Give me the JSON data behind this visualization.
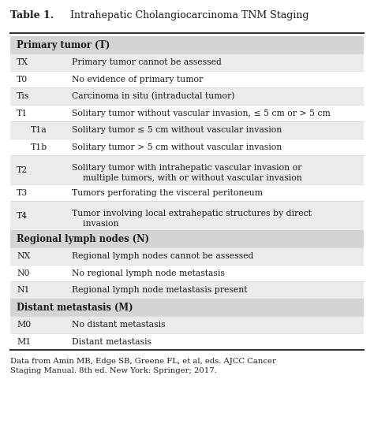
{
  "title_bold": "Table 1.",
  "title_normal": " Intrahepatic Cholangiocarcinoma TNM Staging",
  "footer": "Data from Amin MB, Edge SB, Greene FL, et al, eds. AJCC Cancer Staging Manual. 8th ed. New York: Springer; 2017.",
  "sections": [
    {
      "type": "header",
      "text": "Primary tumor (T)"
    },
    {
      "type": "row",
      "code": "TX",
      "desc": "Primary tumor cannot be assessed",
      "bg": "#ebebeb",
      "indent": 0,
      "nlines": 1
    },
    {
      "type": "row",
      "code": "T0",
      "desc": "No evidence of primary tumor",
      "bg": "#ffffff",
      "indent": 0,
      "nlines": 1
    },
    {
      "type": "row",
      "code": "Tis",
      "desc": "Carcinoma in situ (intraductal tumor)",
      "bg": "#ebebeb",
      "indent": 0,
      "nlines": 1
    },
    {
      "type": "row",
      "code": "T1",
      "desc": "Solitary tumor without vascular invasion, ≤ 5 cm or > 5 cm",
      "bg": "#ffffff",
      "indent": 0,
      "nlines": 1
    },
    {
      "type": "row",
      "code": "T1a",
      "desc": "Solitary tumor ≤ 5 cm without vascular invasion",
      "bg": "#ebebeb",
      "indent": 1,
      "nlines": 1
    },
    {
      "type": "row",
      "code": "T1b",
      "desc": "Solitary tumor > 5 cm without vascular invasion",
      "bg": "#ffffff",
      "indent": 1,
      "nlines": 1
    },
    {
      "type": "row",
      "code": "T2",
      "desc": "Solitary tumor with intrahepatic vascular invasion or\n    multiple tumors, with or without vascular invasion",
      "bg": "#ebebeb",
      "indent": 0,
      "nlines": 2
    },
    {
      "type": "row",
      "code": "T3",
      "desc": "Tumors perforating the visceral peritoneum",
      "bg": "#ffffff",
      "indent": 0,
      "nlines": 1
    },
    {
      "type": "row",
      "code": "T4",
      "desc": "Tumor involving local extrahepatic structures by direct\n    invasion",
      "bg": "#ebebeb",
      "indent": 0,
      "nlines": 2
    },
    {
      "type": "header",
      "text": "Regional lymph nodes (N)"
    },
    {
      "type": "row",
      "code": "NX",
      "desc": "Regional lymph nodes cannot be assessed",
      "bg": "#ebebeb",
      "indent": 0,
      "nlines": 1
    },
    {
      "type": "row",
      "code": "N0",
      "desc": "No regional lymph node metastasis",
      "bg": "#ffffff",
      "indent": 0,
      "nlines": 1
    },
    {
      "type": "row",
      "code": "N1",
      "desc": "Regional lymph node metastasis present",
      "bg": "#ebebeb",
      "indent": 0,
      "nlines": 1
    },
    {
      "type": "header",
      "text": "Distant metastasis (M)"
    },
    {
      "type": "row",
      "code": "M0",
      "desc": "No distant metastasis",
      "bg": "#ebebeb",
      "indent": 0,
      "nlines": 1
    },
    {
      "type": "row",
      "code": "M1",
      "desc": "Distant metastasis",
      "bg": "#ffffff",
      "indent": 0,
      "nlines": 1
    }
  ],
  "bg_color": "#ffffff",
  "header_bg": "#d4d4d4",
  "text_color": "#1a1a1a",
  "font_size": 7.8,
  "title_font_size": 9.0,
  "footer_font_size": 7.2
}
